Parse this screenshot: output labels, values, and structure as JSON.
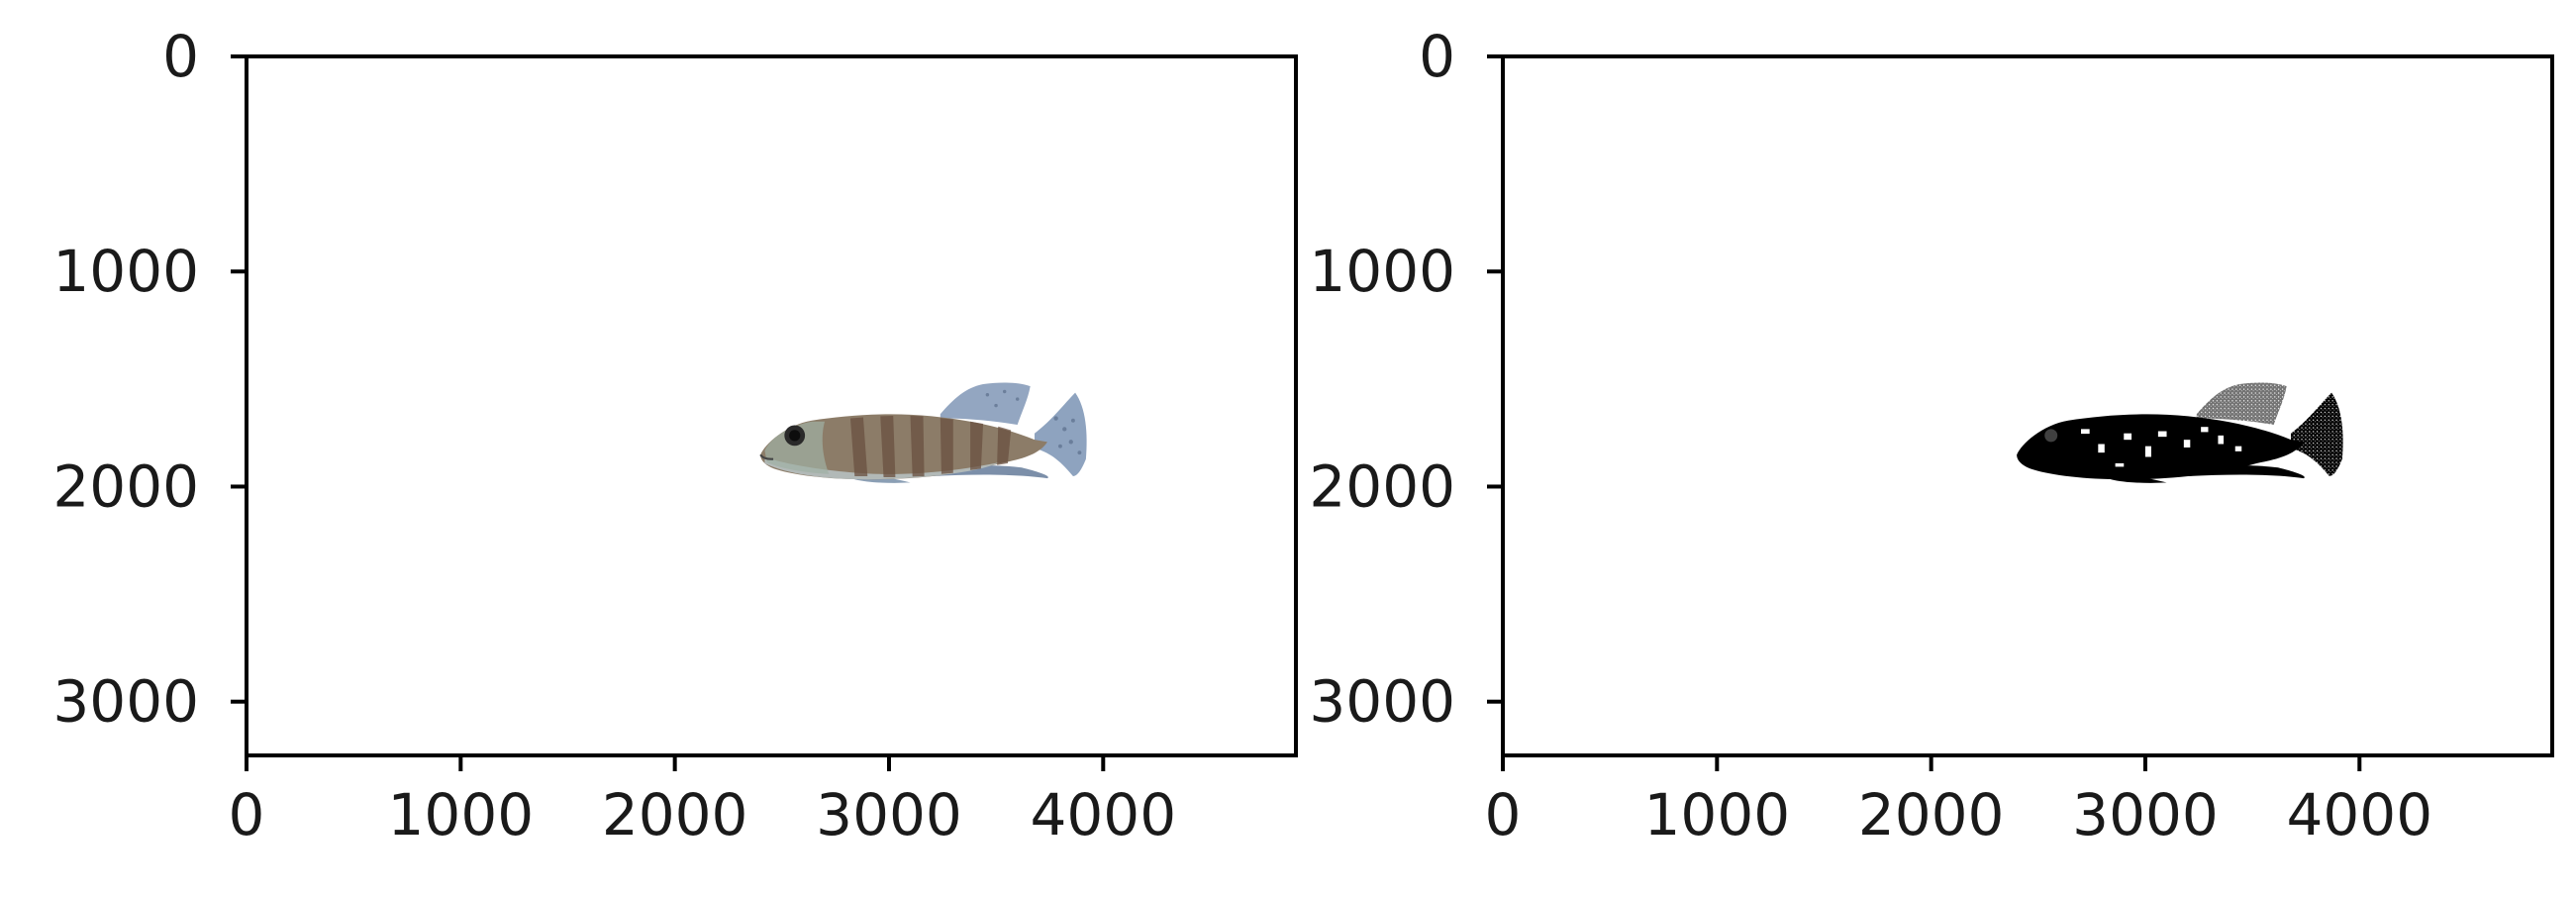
{
  "chart_data": [
    {
      "type": "image",
      "content": "fish photograph (color)",
      "xlim": [
        0,
        4900
      ],
      "ylim": [
        3250,
        0
      ],
      "x_ticks": [
        0,
        1000,
        2000,
        3000,
        4000
      ],
      "y_ticks": [
        0,
        1000,
        2000,
        3000
      ],
      "x_tick_labels": [
        "0",
        "1000",
        "2000",
        "3000",
        "4000"
      ],
      "y_tick_labels": [
        "0",
        "1000",
        "2000",
        "3000"
      ],
      "grid": false,
      "title": "",
      "xlabel": "",
      "ylabel": "",
      "colors": {
        "body": "#8c7a66",
        "stripes": "#6b5446",
        "belly": "#b7c2c4",
        "fins": "#7f94b0",
        "eye": "#111111"
      }
    },
    {
      "type": "image",
      "content": "binary mask of fish (black on white)",
      "xlim": [
        0,
        4900
      ],
      "ylim": [
        3250,
        0
      ],
      "x_ticks": [
        0,
        1000,
        2000,
        3000,
        4000
      ],
      "y_ticks": [
        0,
        1000,
        2000,
        3000
      ],
      "x_tick_labels": [
        "0",
        "1000",
        "2000",
        "3000",
        "4000"
      ],
      "y_tick_labels": [
        "0",
        "1000",
        "2000",
        "3000"
      ],
      "grid": false,
      "title": "",
      "xlabel": "",
      "ylabel": "",
      "colors": {
        "mask": "#000000",
        "background": "#ffffff"
      }
    }
  ]
}
